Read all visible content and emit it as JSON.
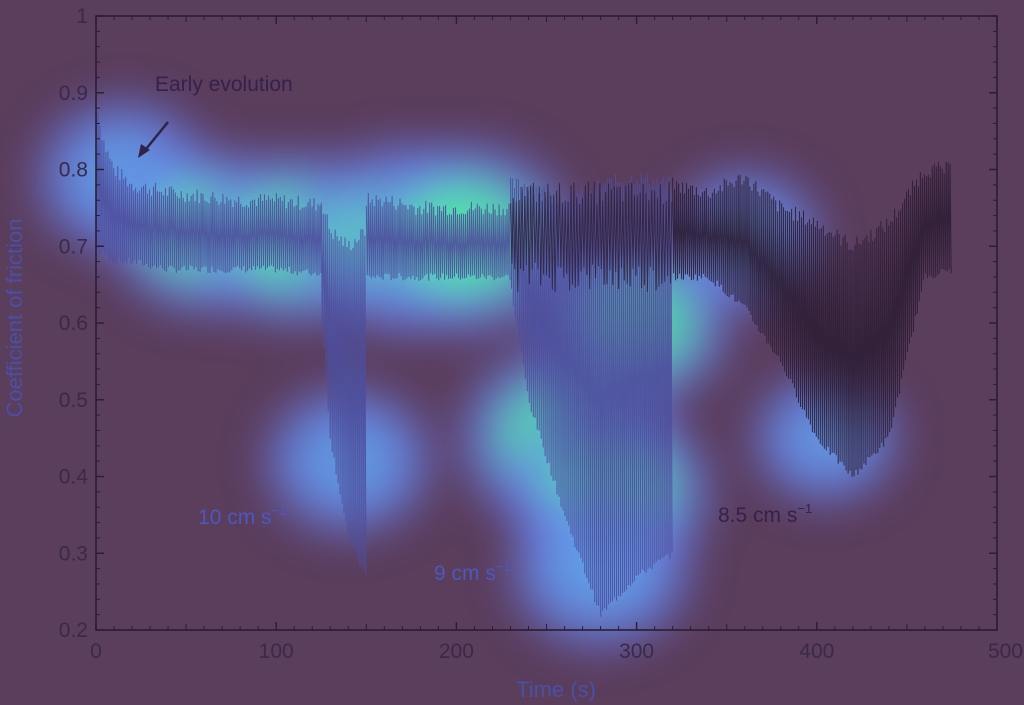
{
  "chart_data": {
    "type": "line",
    "xlabel": "Time (s)",
    "ylabel": "Coefficient of friction",
    "xlim": [
      0,
      500
    ],
    "ylim": [
      0.2,
      1
    ],
    "x_ticks": [
      "0",
      "100",
      "200",
      "300",
      "400",
      "500"
    ],
    "y_ticks": [
      "0.2",
      "0.3",
      "0.4",
      "0.5",
      "0.6",
      "0.7",
      "0.8",
      "0.9",
      "1"
    ],
    "annotations": [
      {
        "text": "Early evolution",
        "x": 16,
        "y": 0.915
      },
      {
        "text": "10 cm s",
        "sup": "−1",
        "x": 48,
        "y": 0.34
      },
      {
        "text": "9 cm s",
        "sup": "−1",
        "x": 182,
        "y": 0.265
      },
      {
        "text": "8.5 cm s",
        "sup": "−1",
        "x": 342,
        "y": 0.34
      }
    ],
    "series": [
      {
        "segments": [
          {
            "x": [
              0,
              2,
              5,
              10,
              20,
              40,
              60,
              80,
              100,
              120,
              125
            ],
            "upper": [
              0.91,
              0.86,
              0.83,
              0.8,
              0.78,
              0.77,
              0.765,
              0.76,
              0.76,
              0.755,
              0.755
            ],
            "lower": [
              0.7,
              0.69,
              0.69,
              0.68,
              0.68,
              0.67,
              0.67,
              0.67,
              0.67,
              0.665,
              0.665
            ]
          },
          {
            "x": [
              125,
              130,
              140,
              150
            ],
            "upper": [
              0.76,
              0.72,
              0.7,
              0.72
            ],
            "lower": [
              0.62,
              0.45,
              0.32,
              0.27
            ]
          },
          {
            "x": [
              150,
              160,
              180,
              200,
              220,
              230
            ],
            "upper": [
              0.76,
              0.76,
              0.75,
              0.75,
              0.75,
              0.75
            ],
            "lower": [
              0.66,
              0.66,
              0.66,
              0.66,
              0.66,
              0.66
            ]
          },
          {
            "x": [
              230,
              240,
              260,
              280,
              300,
              320
            ],
            "upper": [
              0.78,
              0.78,
              0.76,
              0.78,
              0.79,
              0.78
            ],
            "lower": [
              0.65,
              0.5,
              0.35,
              0.22,
              0.27,
              0.3
            ]
          },
          {
            "x": [
              320,
              340,
              360,
              380,
              400,
              420,
              440,
              460,
              475
            ],
            "upper": [
              0.78,
              0.77,
              0.79,
              0.75,
              0.73,
              0.7,
              0.73,
              0.8,
              0.8
            ],
            "lower": [
              0.66,
              0.66,
              0.62,
              0.55,
              0.45,
              0.4,
              0.45,
              0.66,
              0.67
            ]
          }
        ]
      }
    ],
    "heatmap_blobs": [
      {
        "x": 15,
        "y": 0.79,
        "w": 0.55
      },
      {
        "x": 60,
        "y": 0.72,
        "w": 0.65
      },
      {
        "x": 110,
        "y": 0.71,
        "w": 0.7
      },
      {
        "x": 170,
        "y": 0.71,
        "w": 0.85
      },
      {
        "x": 205,
        "y": 0.71,
        "w": 0.85
      },
      {
        "x": 140,
        "y": 0.42,
        "w": 0.5
      },
      {
        "x": 260,
        "y": 0.45,
        "w": 0.8
      },
      {
        "x": 285,
        "y": 0.38,
        "w": 0.75
      },
      {
        "x": 300,
        "y": 0.6,
        "w": 0.65
      },
      {
        "x": 280,
        "y": 0.28,
        "w": 0.6
      },
      {
        "x": 360,
        "y": 0.71,
        "w": 0.4
      },
      {
        "x": 405,
        "y": 0.45,
        "w": 0.35
      }
    ],
    "colors": {
      "background": "#5b3d5c",
      "line": "#4e4f9c",
      "dark_line": "#2d1e35",
      "heat_low": "#6a7cf0",
      "heat_mid": "#5fa8e8",
      "heat_high": "#4ef0a0",
      "axis": "#2a1e33",
      "annot_dark": "#35224a",
      "annot_blue": "#4c58c0"
    }
  }
}
